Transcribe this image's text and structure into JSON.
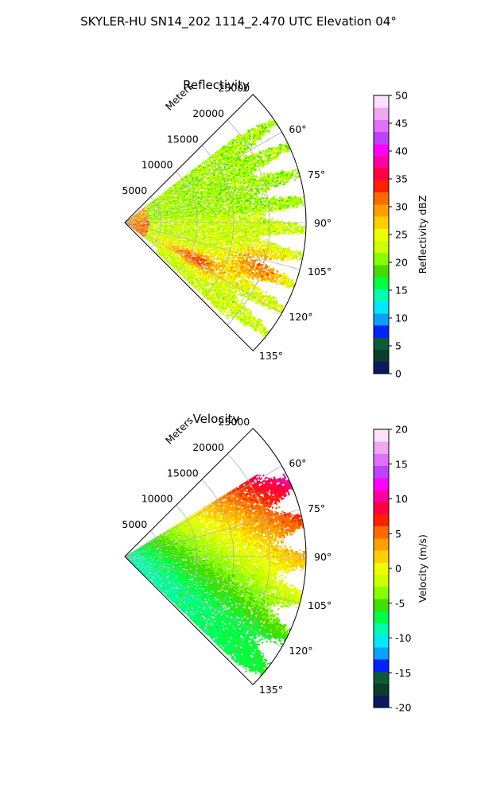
{
  "figure": {
    "suptitle": "SKYLER-HU  SN14_202  1114_2.470 UTC Elevation 04°"
  },
  "chart_data": [
    {
      "type": "heatmap",
      "projection": "polar-sector",
      "title": "Reflectivity",
      "range_axis_label": "Meters",
      "range_ticks": [
        "5000",
        "10000",
        "15000",
        "20000",
        "25000"
      ],
      "range_tick_values": [
        5000,
        10000,
        15000,
        20000,
        25000
      ],
      "range_max": 25000,
      "azimuth_ticks": [
        "60°",
        "75°",
        "90°",
        "105°",
        "120°",
        "135°"
      ],
      "azimuth_tick_values": [
        60,
        75,
        90,
        105,
        120,
        135
      ],
      "azimuth_range": [
        45,
        135
      ],
      "colorbar": {
        "label": "Reflectivity dBZ",
        "ticks": [
          "0",
          "5",
          "10",
          "15",
          "20",
          "25",
          "30",
          "35",
          "40",
          "45",
          "50"
        ],
        "min": 0,
        "max": 50
      },
      "field_description": "mostly 20-28 dBZ echo, stronger 30-36 dBZ bands near 95-125°",
      "grid": true
    },
    {
      "type": "heatmap",
      "projection": "polar-sector",
      "title": "Velocity",
      "range_axis_label": "Meters",
      "range_ticks": [
        "5000",
        "10000",
        "15000",
        "20000",
        "25000"
      ],
      "range_tick_values": [
        5000,
        10000,
        15000,
        20000,
        25000
      ],
      "range_max": 25000,
      "azimuth_ticks": [
        "60°",
        "75°",
        "90°",
        "105°",
        "120°",
        "135°"
      ],
      "azimuth_tick_values": [
        60,
        75,
        90,
        105,
        120,
        135
      ],
      "azimuth_range": [
        45,
        135
      ],
      "colorbar": {
        "label": "Velocity (m/s)",
        "ticks": [
          "-20",
          "-15",
          "-10",
          "-5",
          "0",
          "5",
          "10",
          "15",
          "20"
        ],
        "min": -20,
        "max": 20
      },
      "field_description": "inbound (-10 to -5 m/s) near radar, increasing to +10 to +15 m/s at far range toward 60°",
      "grid": true
    }
  ],
  "colors": {
    "dbz_stops": [
      "#0b1a5e",
      "#0a3d2a",
      "#0d5a3a",
      "#0022ff",
      "#0aa0ff",
      "#00e8ff",
      "#00ffb0",
      "#00ff40",
      "#44dd00",
      "#88ff00",
      "#ccff00",
      "#eeff00",
      "#ffd000",
      "#ffa000",
      "#ff6a00",
      "#ff2000",
      "#ff0040",
      "#ff00a0",
      "#ff00ff",
      "#c040ff",
      "#e070ff",
      "#f0a8f0",
      "#fce0fc"
    ],
    "vel_stops": [
      "#0b1a5e",
      "#0a3d2a",
      "#0d5a3a",
      "#0022ff",
      "#0aa0ff",
      "#00e8ff",
      "#00ffb0",
      "#00ff40",
      "#44dd00",
      "#88ff00",
      "#ccff00",
      "#eeff00",
      "#ffd000",
      "#ffa000",
      "#ff6a00",
      "#ff2000",
      "#ff0040",
      "#ff00a0",
      "#ff00ff",
      "#c040ff",
      "#e070ff",
      "#f0a8f0",
      "#fce0fc"
    ],
    "grid": "#b0b0b0"
  }
}
